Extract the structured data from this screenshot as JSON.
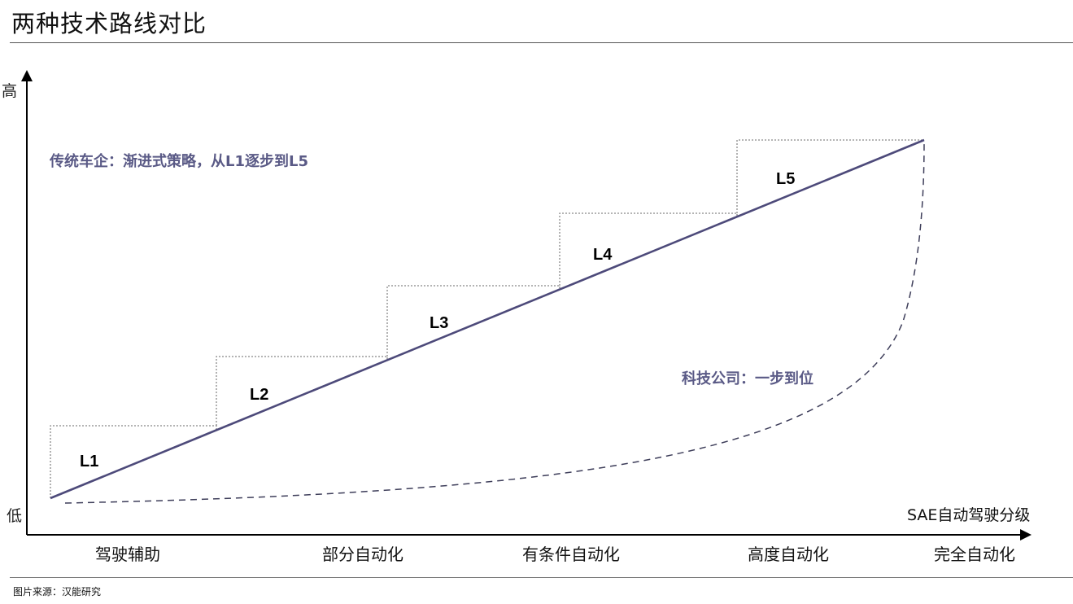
{
  "title": "两种技术路线对比",
  "source": "图片来源：汉能研究",
  "axes": {
    "y_high": "高",
    "y_low": "低",
    "x_caption": "SAE自动驾驶分级"
  },
  "levels": [
    "L1",
    "L2",
    "L3",
    "L4",
    "L5"
  ],
  "stages": [
    "驾驶辅助",
    "部分自动化",
    "有条件自动化",
    "高度自动化",
    "完全自动化"
  ],
  "traditional_label": "传统车企：渐进式策略，从L1逐步到L5",
  "tech_label": "科技公司：一步到位",
  "colors": {
    "path_line": "#4d4a7a",
    "strategy_text": "#5a5a86",
    "step_outline": "#888888",
    "dashed_curve": "#3e3e5a"
  }
}
